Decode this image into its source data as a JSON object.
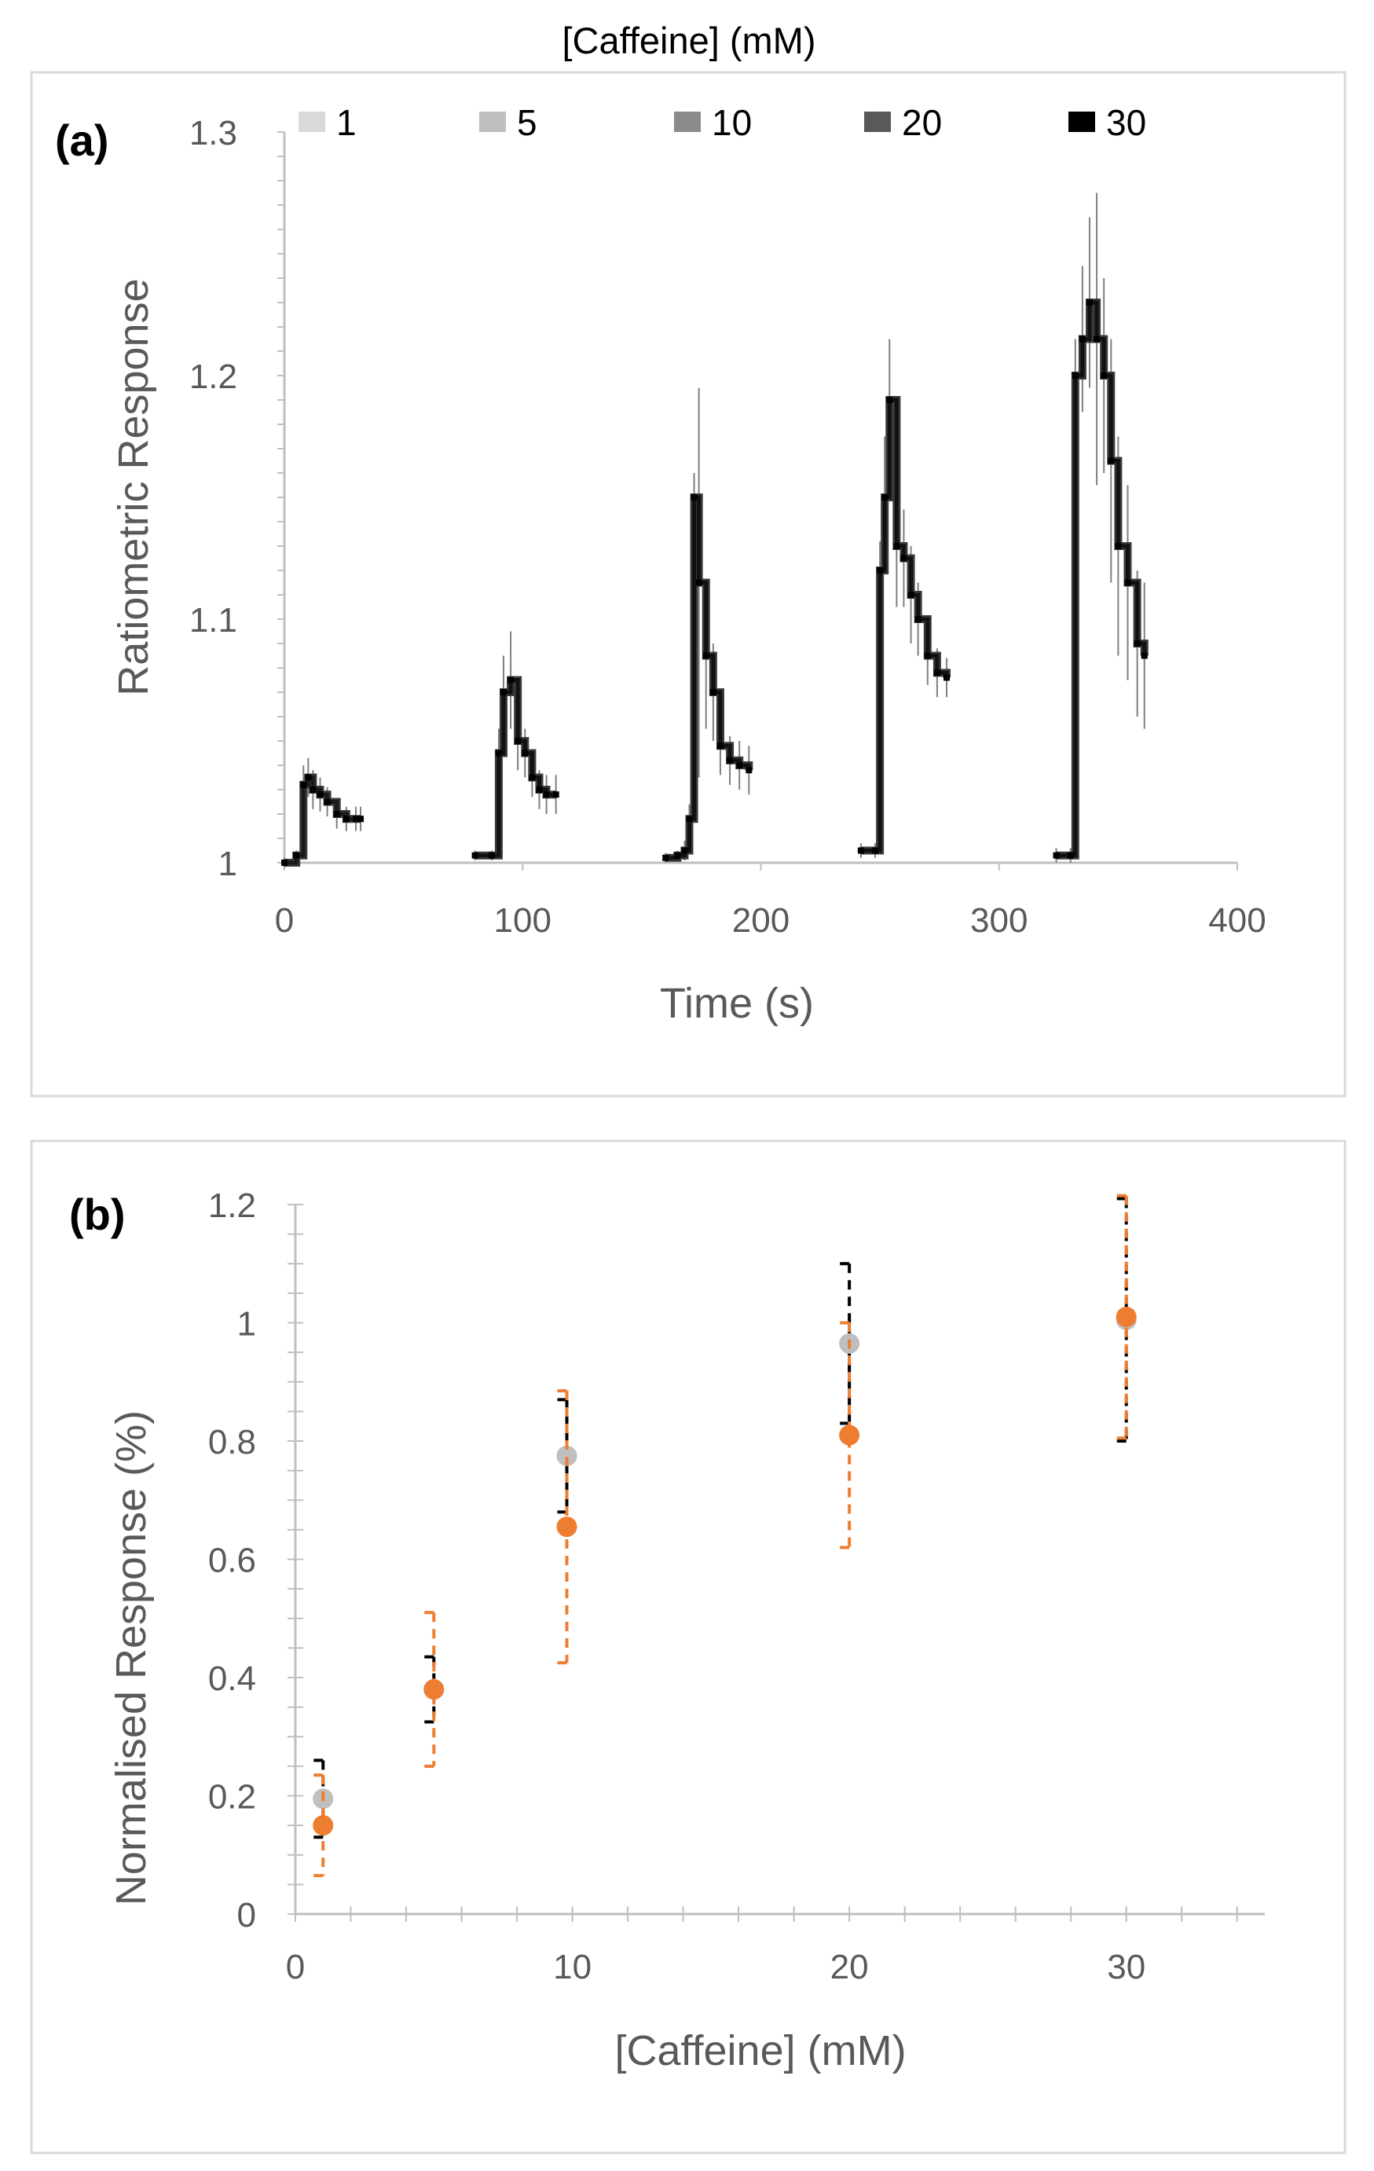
{
  "figure": {
    "header_label": "[Caffeine]  (mM)"
  },
  "chart_data": [
    {
      "type": "line",
      "panel_label": "(a)",
      "title": "",
      "xlabel": "Time (s)",
      "ylabel": "Ratiometric Response",
      "xlim": [
        0,
        400
      ],
      "ylim": [
        1.0,
        1.3
      ],
      "xticks": [
        "0",
        "100",
        "200",
        "300",
        "400"
      ],
      "yticks": [
        "1",
        "1.1",
        "1.2",
        "1.3"
      ],
      "legend_title": "[Caffeine]  (mM)",
      "legend_position": "top",
      "series": [
        {
          "name": "1",
          "color": "#d9d9d9",
          "x": [
            0,
            5,
            8,
            10,
            12,
            15,
            18,
            22,
            26,
            30,
            32
          ],
          "y": [
            1.0,
            1.003,
            1.032,
            1.035,
            1.03,
            1.028,
            1.025,
            1.02,
            1.018,
            1.018,
            1.018
          ],
          "err": [
            0.002,
            0.002,
            0.008,
            0.008,
            0.008,
            0.007,
            0.006,
            0.006,
            0.005,
            0.005,
            0.005
          ]
        },
        {
          "name": "5",
          "color": "#bfbfbf",
          "x": [
            80,
            87,
            90,
            92,
            95,
            98,
            101,
            104,
            107,
            110,
            114
          ],
          "y": [
            1.003,
            1.003,
            1.045,
            1.07,
            1.075,
            1.05,
            1.045,
            1.035,
            1.03,
            1.028,
            1.028
          ],
          "err": [
            0.002,
            0.002,
            0.01,
            0.015,
            0.02,
            0.012,
            0.01,
            0.008,
            0.008,
            0.008,
            0.008
          ]
        },
        {
          "name": "10",
          "color": "#8c8c8c",
          "x": [
            160,
            165,
            168,
            170,
            172,
            174,
            177,
            180,
            183,
            187,
            191,
            195
          ],
          "y": [
            1.002,
            1.003,
            1.005,
            1.018,
            1.15,
            1.115,
            1.085,
            1.07,
            1.048,
            1.042,
            1.04,
            1.038
          ],
          "err": [
            0.002,
            0.002,
            0.004,
            0.006,
            0.01,
            0.08,
            0.03,
            0.02,
            0.012,
            0.01,
            0.01,
            0.01
          ]
        },
        {
          "name": "20",
          "color": "#595959",
          "x": [
            242,
            248,
            250,
            252,
            254,
            257,
            260,
            263,
            266,
            270,
            274,
            278
          ],
          "y": [
            1.005,
            1.005,
            1.12,
            1.15,
            1.19,
            1.13,
            1.125,
            1.11,
            1.1,
            1.085,
            1.078,
            1.076
          ],
          "err": [
            0.003,
            0.003,
            0.012,
            0.025,
            0.025,
            0.025,
            0.02,
            0.02,
            0.015,
            0.012,
            0.01,
            0.008
          ]
        },
        {
          "name": "30",
          "color": "#000000",
          "x": [
            324,
            330,
            332,
            335,
            338,
            341,
            344,
            347,
            350,
            354,
            358,
            361
          ],
          "y": [
            1.003,
            1.003,
            1.2,
            1.215,
            1.23,
            1.215,
            1.2,
            1.165,
            1.13,
            1.115,
            1.09,
            1.085
          ],
          "err": [
            0.003,
            0.003,
            0.015,
            0.03,
            0.035,
            0.06,
            0.04,
            0.05,
            0.045,
            0.04,
            0.03,
            0.03
          ]
        }
      ]
    },
    {
      "type": "scatter",
      "panel_label": "(b)",
      "title": "",
      "xlabel": "[Caffeine] (mM)",
      "ylabel": "Normalised Response (%)",
      "xlim": [
        0,
        35
      ],
      "ylim": [
        0,
        1.2
      ],
      "xticks": [
        "0",
        "10",
        "20",
        "30"
      ],
      "yticks": [
        "0",
        "0.2",
        "0.4",
        "0.6",
        "0.8",
        "1",
        "1.2"
      ],
      "legend_position": "none",
      "series": [
        {
          "name": "grey",
          "color": "#bfbfbf",
          "err_color": "#000000",
          "x": [
            1,
            5,
            9.8,
            20,
            30
          ],
          "y": [
            0.195,
            0.38,
            0.775,
            0.965,
            1.005
          ],
          "err": [
            0.065,
            0.055,
            0.095,
            0.135,
            0.205
          ]
        },
        {
          "name": "orange",
          "color": "#ed7d31",
          "err_color": "#ed7d31",
          "x": [
            1,
            5,
            9.8,
            20,
            30
          ],
          "y": [
            0.15,
            0.38,
            0.655,
            0.81,
            1.01
          ],
          "err": [
            0.085,
            0.13,
            0.23,
            0.19,
            0.205
          ]
        }
      ]
    }
  ]
}
